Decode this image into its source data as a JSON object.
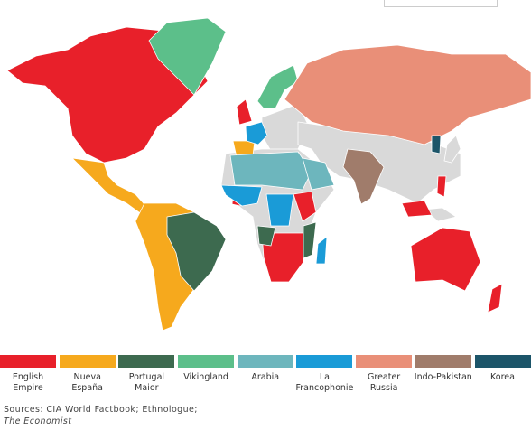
{
  "legend": [
    {
      "label": "English Empire",
      "color": "#e8202a"
    },
    {
      "label": "Nueva España",
      "color": "#f6a91d"
    },
    {
      "label": "Portugal Maior",
      "color": "#3d6a4f"
    },
    {
      "label": "Vikingland",
      "color": "#5cbf8a"
    },
    {
      "label": "Arabia",
      "color": "#6db6bd"
    },
    {
      "label": "La Francophonie",
      "color": "#1a9bd7"
    },
    {
      "label": "Greater Russia",
      "color": "#e98f78"
    },
    {
      "label": "Indo-Pakistan",
      "color": "#a07c6b"
    },
    {
      "label": "Korea",
      "color": "#1c5569"
    }
  ],
  "sources": "Sources: CIA World Factbook; Ethnologue;",
  "publication": "The Economist"
}
